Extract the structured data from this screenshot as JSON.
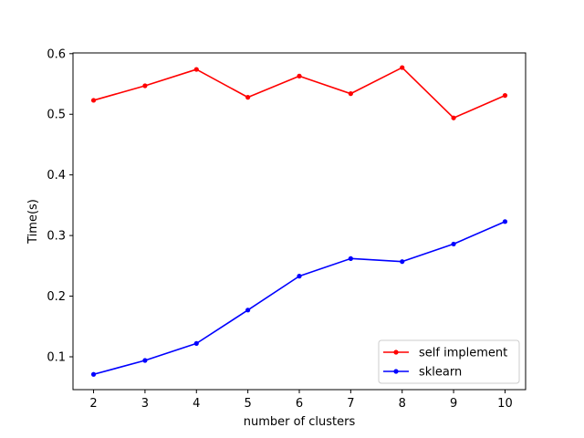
{
  "chart_data": {
    "type": "line",
    "title": "",
    "xlabel": "number of clusters",
    "ylabel": "Time(s)",
    "x": [
      2,
      3,
      4,
      5,
      6,
      7,
      8,
      9,
      10
    ],
    "xlim": [
      1.6,
      10.4
    ],
    "ylim": [
      0.0458,
      0.6012
    ],
    "xticks": [
      2,
      3,
      4,
      5,
      6,
      7,
      8,
      9,
      10
    ],
    "yticks": [
      0.1,
      0.2,
      0.3,
      0.4,
      0.5,
      0.6
    ],
    "ytick_labels": [
      "0.1",
      "0.2",
      "0.3",
      "0.4",
      "0.5",
      "0.6"
    ],
    "grid": false,
    "legend_position": "lower-right",
    "series": [
      {
        "name": "self implement",
        "color": "#ff0000",
        "marker": "dot",
        "values": [
          0.523,
          0.547,
          0.574,
          0.528,
          0.563,
          0.534,
          0.577,
          0.494,
          0.531
        ]
      },
      {
        "name": "sklearn",
        "color": "#0000ff",
        "marker": "dot",
        "values": [
          0.071,
          0.094,
          0.122,
          0.177,
          0.233,
          0.262,
          0.257,
          0.286,
          0.323
        ]
      }
    ]
  }
}
